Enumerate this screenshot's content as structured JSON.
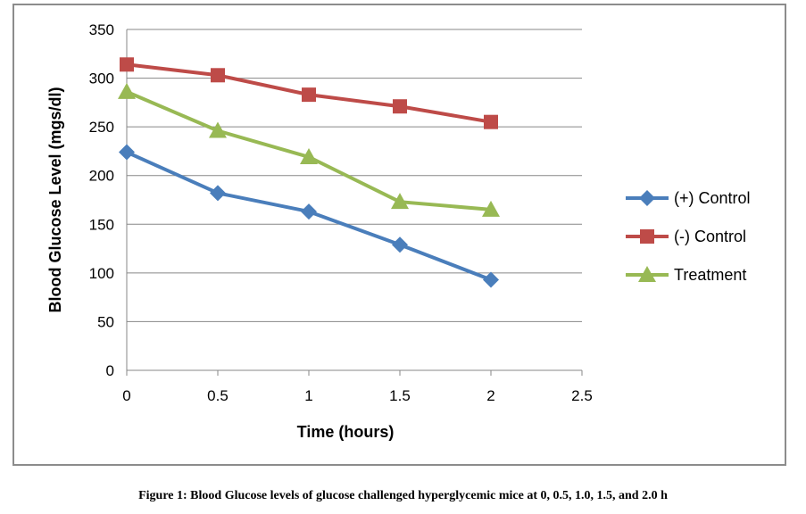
{
  "caption": "Figure 1: Blood Glucose levels of glucose challenged hyperglycemic mice at 0, 0.5, 1.0, 1.5, and 2.0 h",
  "chart_data": {
    "type": "line",
    "title": "",
    "xlabel": "Time (hours)",
    "ylabel": "Blood Glucose Level (mgs/dl)",
    "xlim": [
      0,
      2.5
    ],
    "ylim": [
      0,
      350
    ],
    "x_ticks": [
      0,
      0.5,
      1,
      1.5,
      2,
      2.5
    ],
    "y_ticks": [
      0,
      50,
      100,
      150,
      200,
      250,
      300,
      350
    ],
    "x_tick_labels": [
      "0",
      "0.5",
      "1",
      "1.5",
      "2",
      "2.5"
    ],
    "y_tick_labels": [
      "0",
      "50",
      "100",
      "150",
      "200",
      "250",
      "300",
      "350"
    ],
    "grid": "horizontal",
    "legend_position": "right",
    "x": [
      0,
      0.5,
      1,
      1.5,
      2
    ],
    "series": [
      {
        "name": "(+) Control",
        "values": [
          224,
          182,
          163,
          129,
          93
        ],
        "color": "#4a7ebb",
        "marker": "diamond"
      },
      {
        "name": "(-) Control",
        "values": [
          314,
          303,
          283,
          271,
          255
        ],
        "color": "#be4b48",
        "marker": "square"
      },
      {
        "name": "Treatment",
        "values": [
          286,
          246,
          219,
          173,
          165
        ],
        "color": "#98b954",
        "marker": "triangle"
      }
    ]
  }
}
